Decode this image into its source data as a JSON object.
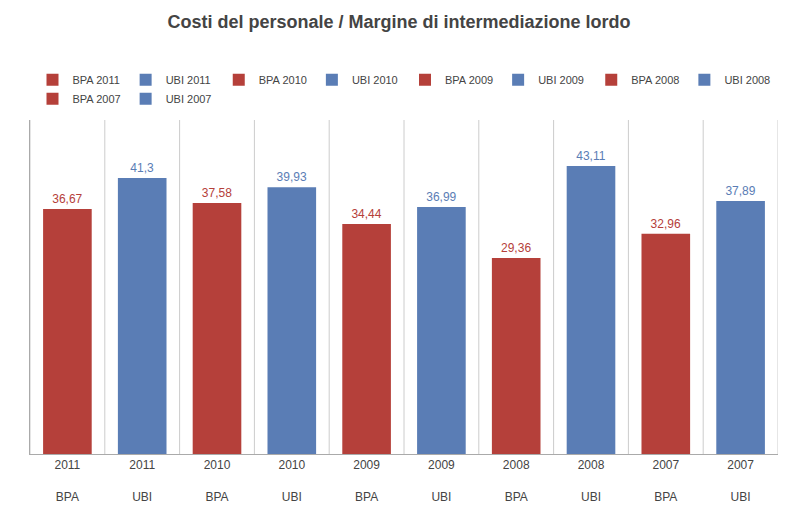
{
  "chart_data": {
    "type": "bar",
    "title": "Costi del personale / Margine di intermediazione lordo",
    "categories": [
      "2011\n\nBPA",
      "2011\n\nUBI",
      "2010\n\nBPA",
      "2010\n\nUBI",
      "2009\n\nBPA",
      "2009\n\nUBI",
      "2008\n\nBPA",
      "2008\n\nUBI",
      "2007\n\nBPA",
      "2007\n\nUBI"
    ],
    "series": [
      {
        "name": "BPA 2011",
        "color": "#b5403a",
        "values": [
          36.67,
          null,
          null,
          null,
          null,
          null,
          null,
          null,
          null,
          null
        ],
        "value_labels": [
          "36,67",
          null,
          null,
          null,
          null,
          null,
          null,
          null,
          null,
          null
        ]
      },
      {
        "name": "UBI 2011",
        "color": "#5a7db5",
        "values": [
          null,
          41.3,
          null,
          null,
          null,
          null,
          null,
          null,
          null,
          null
        ],
        "value_labels": [
          null,
          "41,3",
          null,
          null,
          null,
          null,
          null,
          null,
          null,
          null
        ]
      },
      {
        "name": "BPA 2010",
        "color": "#b5403a",
        "values": [
          null,
          null,
          37.58,
          null,
          null,
          null,
          null,
          null,
          null,
          null
        ],
        "value_labels": [
          null,
          null,
          "37,58",
          null,
          null,
          null,
          null,
          null,
          null,
          null
        ]
      },
      {
        "name": "UBI 2010",
        "color": "#5a7db5",
        "values": [
          null,
          null,
          null,
          39.93,
          null,
          null,
          null,
          null,
          null,
          null
        ],
        "value_labels": [
          null,
          null,
          null,
          "39,93",
          null,
          null,
          null,
          null,
          null,
          null
        ]
      },
      {
        "name": "BPA 2009",
        "color": "#b5403a",
        "values": [
          null,
          null,
          null,
          null,
          34.44,
          null,
          null,
          null,
          null,
          null
        ],
        "value_labels": [
          null,
          null,
          null,
          null,
          "34,44",
          null,
          null,
          null,
          null,
          null
        ]
      },
      {
        "name": "UBI 2009",
        "color": "#5a7db5",
        "values": [
          null,
          null,
          null,
          null,
          null,
          36.99,
          null,
          null,
          null,
          null
        ],
        "value_labels": [
          null,
          null,
          null,
          null,
          null,
          "36,99",
          null,
          null,
          null,
          null
        ]
      },
      {
        "name": "BPA 2008",
        "color": "#b5403a",
        "values": [
          null,
          null,
          null,
          null,
          null,
          null,
          29.36,
          null,
          null,
          null
        ],
        "value_labels": [
          null,
          null,
          null,
          null,
          null,
          null,
          "29,36",
          null,
          null,
          null
        ]
      },
      {
        "name": "UBI 2008",
        "color": "#5a7db5",
        "values": [
          null,
          null,
          null,
          null,
          null,
          null,
          null,
          43.11,
          null,
          null
        ],
        "value_labels": [
          null,
          null,
          null,
          null,
          null,
          null,
          null,
          "43,11",
          null,
          null
        ]
      },
      {
        "name": "BPA 2007",
        "color": "#b5403a",
        "values": [
          null,
          null,
          null,
          null,
          null,
          null,
          null,
          null,
          32.96,
          null
        ],
        "value_labels": [
          null,
          null,
          null,
          null,
          null,
          null,
          null,
          null,
          "32,96",
          null
        ]
      },
      {
        "name": "UBI 2007",
        "color": "#5a7db5",
        "values": [
          null,
          null,
          null,
          null,
          null,
          null,
          null,
          null,
          null,
          37.89
        ],
        "value_labels": [
          null,
          null,
          null,
          null,
          null,
          null,
          null,
          null,
          null,
          "37,89"
        ]
      }
    ],
    "ylim": [
      0,
      50
    ],
    "tick_labels": "x",
    "data_labels": true,
    "grid": true,
    "legend": "top"
  }
}
